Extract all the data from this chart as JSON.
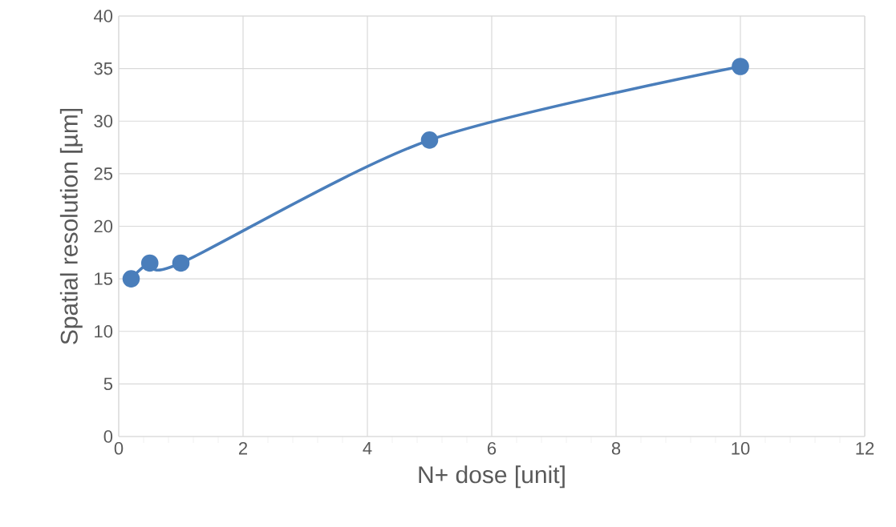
{
  "chart_data": {
    "type": "line",
    "xlabel": "N+ dose [unit]",
    "ylabel": "Spatial resolution [µm]",
    "x": [
      0.2,
      0.5,
      1,
      5,
      10
    ],
    "series": [
      {
        "color": "#4a7ebb",
        "values": [
          15.0,
          16.5,
          16.5,
          28.2,
          35.2
        ]
      }
    ],
    "xlim": [
      0,
      12
    ],
    "xticks": [
      0,
      2,
      4,
      6,
      8,
      10,
      12
    ],
    "ylim": [
      0,
      40
    ],
    "yticks": [
      0,
      5,
      10,
      15,
      20,
      25,
      30,
      35,
      40
    ],
    "grid": true,
    "marker": "circle",
    "line_style": "solid"
  }
}
